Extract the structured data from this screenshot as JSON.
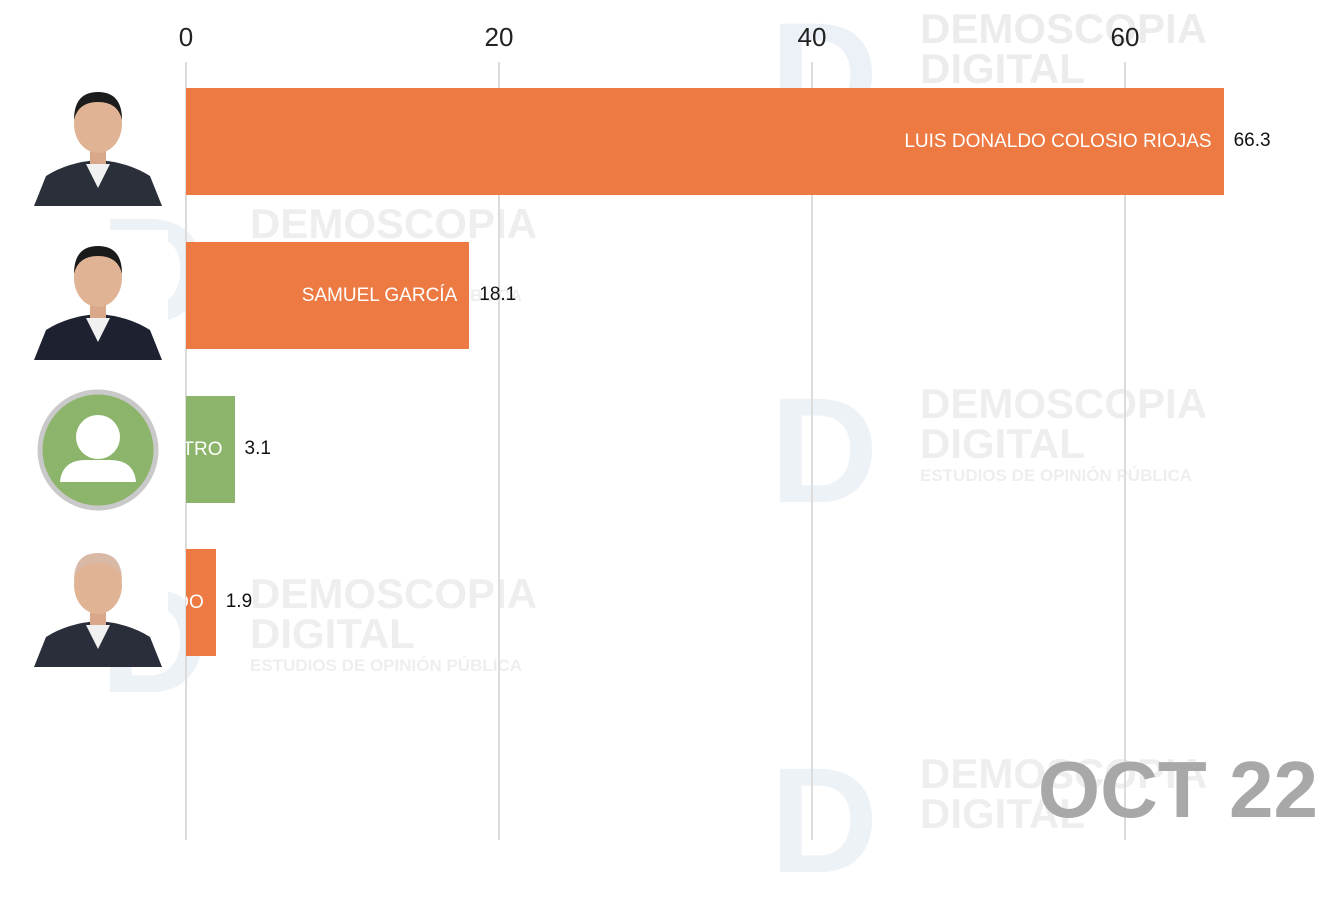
{
  "watermark": {
    "line1": "DEMOSCOPIA",
    "line2": "DIGITAL",
    "sub": "ESTUDIOS DE OPINIÓN PÚBLICA"
  },
  "period_label": "OCT 22",
  "colors": {
    "orange": "#ec7a42",
    "green": "#8cb56b",
    "grid": "#dcdcdc"
  },
  "chart_data": {
    "type": "bar",
    "orientation": "horizontal",
    "categories": [
      "LUIS DONALDO COLOSIO RIOJAS",
      "SAMUEL GARCÍA",
      "OTRO",
      "DANTE DELGADO"
    ],
    "values": [
      66.3,
      18.1,
      3.1,
      1.9
    ],
    "value_labels": [
      "66.3",
      "18.1",
      "3.1",
      "1.9"
    ],
    "visible_bar_labels": [
      "LUIS DONALDO COLOSIO RIOJAS",
      "SAMUEL GARCÍA",
      "TRO",
      "DO"
    ],
    "bar_colors": [
      "#ec7a42",
      "#ec7a42",
      "#8cb56b",
      "#ec7a42"
    ],
    "photos": [
      "person-photo",
      "person-photo",
      "generic-user-icon",
      "person-photo"
    ],
    "xticks": [
      0,
      20,
      40,
      60
    ],
    "xtick_labels": [
      "0",
      "20",
      "40",
      "60"
    ],
    "xlim": [
      0,
      73
    ],
    "grid": true,
    "axis_position": "top"
  }
}
